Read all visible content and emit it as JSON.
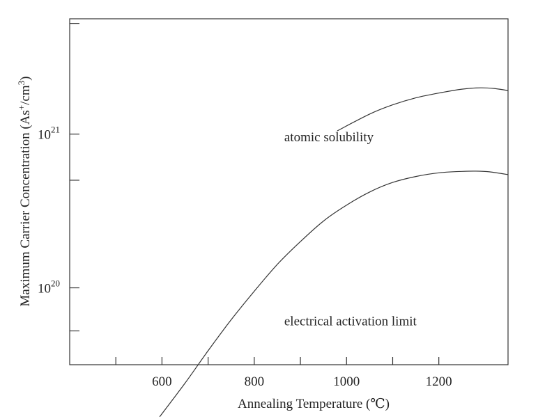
{
  "chart_data": {
    "type": "line",
    "title": "",
    "xlabel": "Annealing Temperature (℃)",
    "ylabel": {
      "base": "Maximum Carrier Concentration (As",
      "sup1": "+",
      "mid": "/cm",
      "sup2": "3",
      "end": ")"
    },
    "xlim": [
      400,
      1350
    ],
    "ylim_log10": [
      19.5,
      21.75
    ],
    "y_scale": "log",
    "x_ticks": [
      {
        "value": 500,
        "label": ""
      },
      {
        "value": 600,
        "label": "600"
      },
      {
        "value": 700,
        "label": ""
      },
      {
        "value": 800,
        "label": "800"
      },
      {
        "value": 900,
        "label": ""
      },
      {
        "value": 1000,
        "label": "1000"
      },
      {
        "value": 1100,
        "label": ""
      },
      {
        "value": 1200,
        "label": "1200"
      }
    ],
    "y_ticks": [
      {
        "value_log10": 19.72,
        "base": "",
        "exp": ""
      },
      {
        "value_log10": 20.0,
        "base": "10",
        "exp": "20"
      },
      {
        "value_log10": 20.7,
        "base": "",
        "exp": ""
      },
      {
        "value_log10": 21.0,
        "base": "10",
        "exp": "21"
      },
      {
        "value_log10": 21.72,
        "base": "",
        "exp": ""
      }
    ],
    "grid": false,
    "series": [
      {
        "x": [
          980,
          1050,
          1100,
          1150,
          1200,
          1250,
          1290,
          1320,
          1350
        ],
        "y": [
          1.05e+21,
          1.35e+21,
          1.55e+21,
          1.72e+21,
          1.85e+21,
          1.96e+21,
          2e+21,
          1.98e+21,
          1.92e+21
        ]
      },
      {
        "x": [
          595,
          650,
          700,
          750,
          800,
          850,
          900,
          950,
          1000,
          1050,
          1100,
          1150,
          1200,
          1250,
          1280,
          1310,
          1350
        ],
        "y": [
          1.45e+19,
          2.4e+19,
          3.9e+19,
          6.2e+19,
          9.5e+19,
          1.42e+20,
          2e+20,
          2.72e+20,
          3.45e+20,
          4.2e+20,
          4.85e+20,
          5.3e+20,
          5.6e+20,
          5.72e+20,
          5.74e+20,
          5.68e+20,
          5.45e+20
        ]
      }
    ],
    "annotations": [
      {
        "text": "atomic solubility",
        "x": 865,
        "y": 9e+20
      },
      {
        "text": "electrical activation limit",
        "x": 865,
        "y": 5.7e+19
      }
    ]
  }
}
